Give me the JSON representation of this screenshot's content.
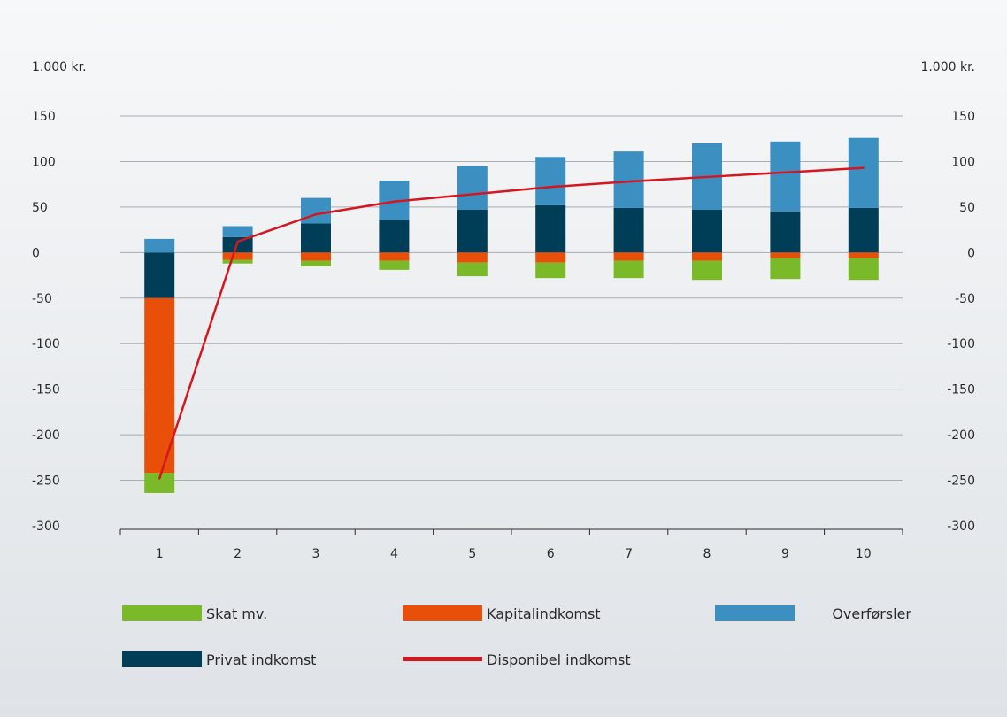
{
  "chart_data": {
    "type": "bar",
    "stacked": true,
    "ylabel_left": "1.000 kr.",
    "ylabel_right": "1.000 kr.",
    "ylim": [
      -300,
      150
    ],
    "yticks": [
      "150",
      "100",
      "50",
      "0",
      "-50",
      "-100",
      "-150",
      "-200",
      "-250",
      "-300"
    ],
    "ytick_values": [
      150,
      100,
      50,
      0,
      -50,
      -100,
      -150,
      -200,
      -250,
      -300
    ],
    "grid": true,
    "categories": [
      "1",
      "2",
      "3",
      "4",
      "5",
      "6",
      "7",
      "8",
      "9",
      "10"
    ],
    "series": [
      {
        "name": "Privat indkomst",
        "color": "#003d57",
        "kind": "bar",
        "values": [
          -50,
          17,
          32,
          36,
          47,
          52,
          49,
          47,
          45,
          49
        ]
      },
      {
        "name": "Overførsler",
        "color": "#3c8fc1",
        "kind": "bar",
        "values": [
          15,
          12,
          28,
          43,
          48,
          53,
          62,
          73,
          77,
          77
        ]
      },
      {
        "name": "Kapitalindkomst",
        "color": "#e8500a",
        "kind": "bar",
        "values": [
          -192,
          -8,
          -9,
          -9,
          -11,
          -11,
          -9,
          -9,
          -6,
          -6
        ]
      },
      {
        "name": "Skat mv.",
        "color": "#7ab928",
        "kind": "bar",
        "values": [
          -22,
          -4,
          -6,
          -10,
          -15,
          -17,
          -19,
          -21,
          -23,
          -24
        ]
      },
      {
        "name": "Disponibel indkomst",
        "color": "#d6161e",
        "kind": "line",
        "values": [
          -248,
          12,
          42,
          56,
          64,
          72,
          78,
          83,
          88,
          93
        ]
      }
    ],
    "legend": {
      "placement": "bottom",
      "items": [
        "Skat mv.",
        "Kapitalindkomst",
        "Overførsler",
        "Privat indkomst",
        "Disponibel indkomst"
      ]
    }
  }
}
